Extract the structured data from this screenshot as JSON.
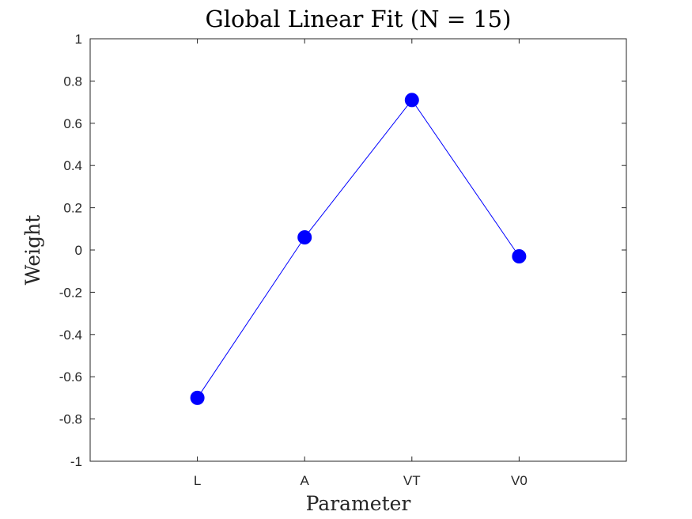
{
  "chart_data": {
    "type": "line",
    "title": "Global Linear Fit (N = 15)",
    "xlabel": "Parameter",
    "ylabel": "Weight",
    "categories": [
      "L",
      "A",
      "VT",
      "V0"
    ],
    "series": [
      {
        "values": [
          -0.7,
          0.06,
          0.71,
          -0.03
        ],
        "color": "#0000ff"
      }
    ],
    "ylim": [
      -1,
      1
    ],
    "yticks": [
      -1,
      -0.8,
      -0.6,
      -0.4,
      -0.2,
      0,
      0.2,
      0.4,
      0.6,
      0.8,
      1
    ],
    "ytick_labels": [
      "-1",
      "-0.8",
      "-0.6",
      "-0.4",
      "-0.2",
      "0",
      "0.2",
      "0.4",
      "0.6",
      "0.8",
      "1"
    ],
    "grid": false,
    "marker": "filled-circle"
  }
}
